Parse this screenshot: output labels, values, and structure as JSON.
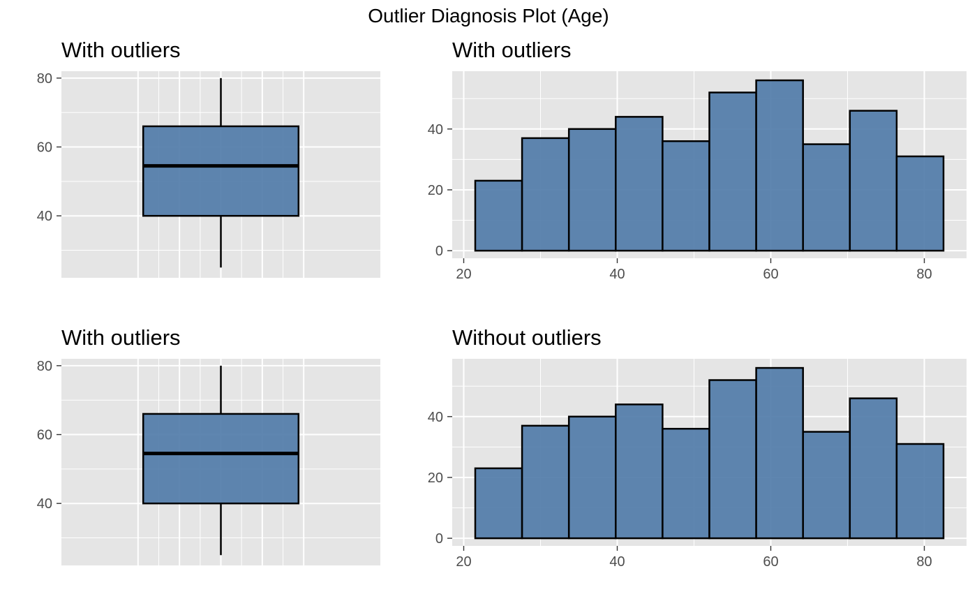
{
  "figure": {
    "title": "Outlier Diagnosis Plot (Age)"
  },
  "colors": {
    "fill": "#4e79a7",
    "outline": "#000000",
    "panel_background": "#e5e5e5",
    "grid": "#ffffff"
  },
  "chart_data": [
    {
      "type": "box",
      "title": "With outliers",
      "position": "top-left",
      "ylim": [
        22,
        82
      ],
      "ybreaks": [
        40,
        60,
        80
      ],
      "box": {
        "min": 25,
        "q1": 40,
        "median": 54.5,
        "q3": 66,
        "max": 80
      },
      "grid": true
    },
    {
      "type": "bar",
      "subtype": "histogram",
      "title": "With outliers",
      "position": "top-right",
      "xlim": [
        18.5,
        85.5
      ],
      "ylim": [
        -2.5,
        59
      ],
      "xbreaks": [
        20,
        40,
        60,
        80
      ],
      "ybreaks": [
        0,
        20,
        40
      ],
      "bins": [
        {
          "x0": 21.5,
          "x1": 27.6,
          "count": 23
        },
        {
          "x0": 27.6,
          "x1": 33.7,
          "count": 37
        },
        {
          "x0": 33.7,
          "x1": 39.8,
          "count": 40
        },
        {
          "x0": 39.8,
          "x1": 45.9,
          "count": 44
        },
        {
          "x0": 45.9,
          "x1": 52.0,
          "count": 36
        },
        {
          "x0": 52.0,
          "x1": 58.1,
          "count": 52
        },
        {
          "x0": 58.1,
          "x1": 64.2,
          "count": 56
        },
        {
          "x0": 64.2,
          "x1": 70.3,
          "count": 35
        },
        {
          "x0": 70.3,
          "x1": 76.4,
          "count": 46
        },
        {
          "x0": 76.4,
          "x1": 82.5,
          "count": 31
        }
      ],
      "grid": true
    },
    {
      "type": "box",
      "title": "With outliers",
      "position": "bottom-left",
      "ylim": [
        22,
        82
      ],
      "ybreaks": [
        40,
        60,
        80
      ],
      "box": {
        "min": 25,
        "q1": 40,
        "median": 54.5,
        "q3": 66,
        "max": 80
      },
      "grid": true
    },
    {
      "type": "bar",
      "subtype": "histogram",
      "title": "Without outliers",
      "position": "bottom-right",
      "xlim": [
        18.5,
        85.5
      ],
      "ylim": [
        -2.5,
        59
      ],
      "xbreaks": [
        20,
        40,
        60,
        80
      ],
      "ybreaks": [
        0,
        20,
        40
      ],
      "bins": [
        {
          "x0": 21.5,
          "x1": 27.6,
          "count": 23
        },
        {
          "x0": 27.6,
          "x1": 33.7,
          "count": 37
        },
        {
          "x0": 33.7,
          "x1": 39.8,
          "count": 40
        },
        {
          "x0": 39.8,
          "x1": 45.9,
          "count": 44
        },
        {
          "x0": 45.9,
          "x1": 52.0,
          "count": 36
        },
        {
          "x0": 52.0,
          "x1": 58.1,
          "count": 52
        },
        {
          "x0": 58.1,
          "x1": 64.2,
          "count": 56
        },
        {
          "x0": 64.2,
          "x1": 70.3,
          "count": 35
        },
        {
          "x0": 70.3,
          "x1": 76.4,
          "count": 46
        },
        {
          "x0": 76.4,
          "x1": 82.5,
          "count": 31
        }
      ],
      "grid": true
    }
  ]
}
